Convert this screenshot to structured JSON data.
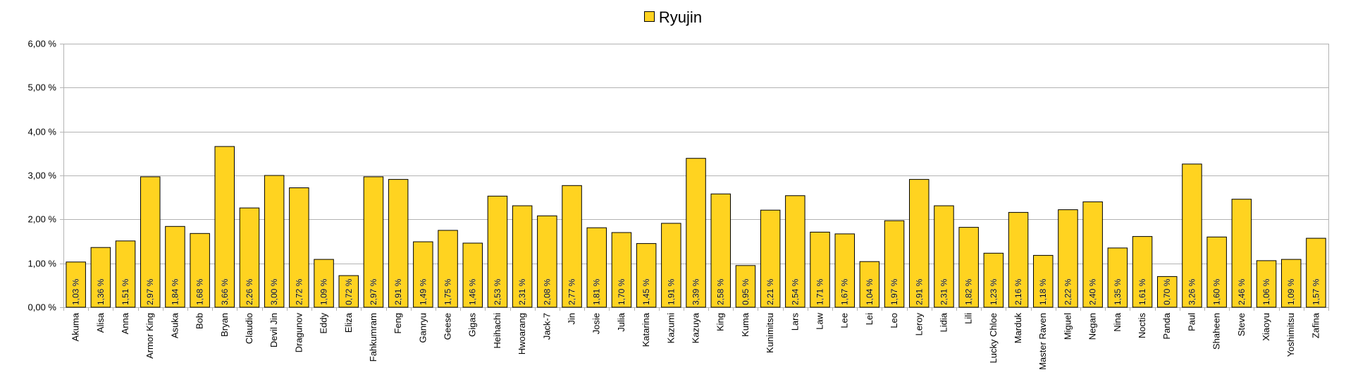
{
  "chart_data": {
    "type": "bar",
    "legend": {
      "entries": [
        "Ryujin"
      ],
      "position": "top"
    },
    "series": [
      {
        "name": "Ryujin",
        "color": "#FFD320",
        "values": [
          1.03,
          1.36,
          1.51,
          2.97,
          1.84,
          1.68,
          3.66,
          2.26,
          3.0,
          2.72,
          1.09,
          0.72,
          2.97,
          2.91,
          1.49,
          1.75,
          1.46,
          2.53,
          2.31,
          2.08,
          2.77,
          1.81,
          1.7,
          1.45,
          1.91,
          3.39,
          2.58,
          0.95,
          2.21,
          2.54,
          1.71,
          1.67,
          1.04,
          1.97,
          2.91,
          2.31,
          1.82,
          1.23,
          2.16,
          1.18,
          2.22,
          2.4,
          1.35,
          1.61,
          0.7,
          3.26,
          1.6,
          2.46,
          1.06,
          1.09,
          1.57
        ]
      }
    ],
    "categories": [
      "Akuma",
      "Alisa",
      "Anna",
      "Armor King",
      "Asuka",
      "Bob",
      "Bryan",
      "Claudio",
      "Devil Jin",
      "Dragunov",
      "Eddy",
      "Eliza",
      "Fahkumram",
      "Feng",
      "Ganryu",
      "Geese",
      "Gigas",
      "Heihachi",
      "Hwoarang",
      "Jack-7",
      "Jin",
      "Josie",
      "Julia",
      "Katarina",
      "Kazumi",
      "Kazuya",
      "King",
      "Kuma",
      "Kunimitsu",
      "Lars",
      "Law",
      "Lee",
      "Lei",
      "Leo",
      "Leroy",
      "Lidia",
      "Lili",
      "Lucky Chloe",
      "Marduk",
      "Master Raven",
      "Miguel",
      "Negan",
      "Nina",
      "Noctis",
      "Panda",
      "Paul",
      "Shaheen",
      "Steve",
      "Xiaoyu",
      "Yoshimitsu",
      "Zafina"
    ],
    "data_labels": [
      "1,03 %",
      "1,36 %",
      "1,51 %",
      "2,97 %",
      "1,84 %",
      "1,68 %",
      "3,66 %",
      "2,26 %",
      "3,00 %",
      "2,72 %",
      "1,09 %",
      "0,72 %",
      "2,97 %",
      "2,91 %",
      "1,49 %",
      "1,75 %",
      "1,46 %",
      "2,53 %",
      "2,31 %",
      "2,08 %",
      "2,77 %",
      "1,81 %",
      "1,70 %",
      "1,45 %",
      "1,91 %",
      "3,39 %",
      "2,58 %",
      "0,95 %",
      "2,21 %",
      "2,54 %",
      "1,71 %",
      "1,67 %",
      "1,04 %",
      "1,97 %",
      "2,91 %",
      "2,31 %",
      "1,82 %",
      "1,23 %",
      "2,16 %",
      "1,18 %",
      "2,22 %",
      "2,40 %",
      "1,35 %",
      "1,61 %",
      "0,70 %",
      "3,26 %",
      "1,60 %",
      "2,46 %",
      "1,06 %",
      "1,09 %",
      "1,57 %"
    ],
    "y_ticks": [
      0,
      1,
      2,
      3,
      4,
      5,
      6
    ],
    "y_tick_labels": [
      "0,00 %",
      "1,00 %",
      "2,00 %",
      "3,00 %",
      "4,00 %",
      "5,00 %",
      "6,00 %"
    ],
    "ylim": [
      0,
      6
    ],
    "grid": true
  }
}
